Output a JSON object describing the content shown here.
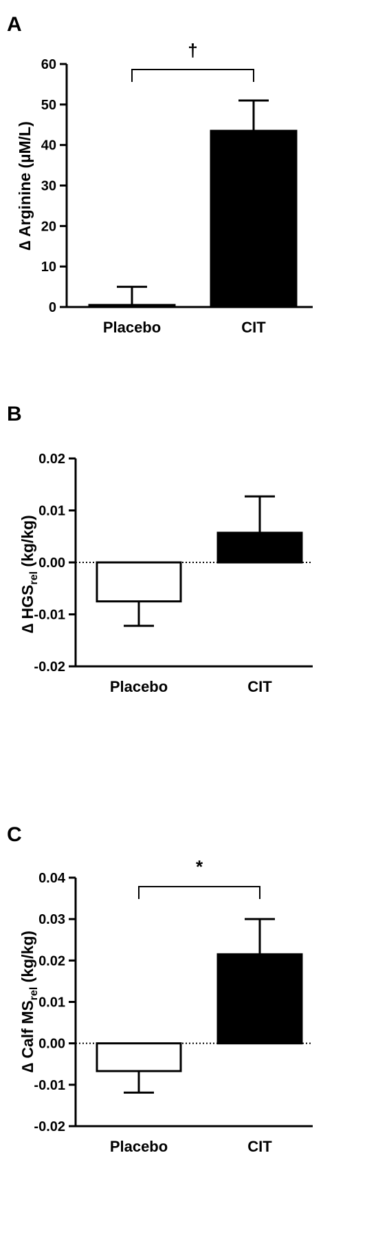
{
  "chart_data": [
    {
      "panel_label": "A",
      "type": "bar",
      "categories": [
        "Placebo",
        "CIT"
      ],
      "values": [
        0.5,
        43.5
      ],
      "errors": [
        4.5,
        7.5
      ],
      "fill_colors": [
        "#ffffff",
        "#000000"
      ],
      "ylim": [
        0,
        60
      ],
      "yticks": [
        0,
        10,
        20,
        30,
        40,
        50,
        60
      ],
      "yticklabels": [
        "0",
        "10",
        "20",
        "30",
        "40",
        "50",
        "60"
      ],
      "ylabel": "∆ Arginine (µM/L)",
      "significance": "†",
      "dotted_zero_line": false,
      "grid": false,
      "legend": "none"
    },
    {
      "panel_label": "B",
      "type": "bar",
      "categories": [
        "Placebo",
        "CIT"
      ],
      "values": [
        -0.0075,
        0.0057
      ],
      "errors": [
        0.0047,
        0.007
      ],
      "fill_colors": [
        "#ffffff",
        "#000000"
      ],
      "ylim": [
        -0.02,
        0.02
      ],
      "yticks": [
        -0.02,
        -0.01,
        0,
        0.01,
        0.02
      ],
      "yticklabels": [
        "-0.02",
        "-0.01",
        "0.00",
        "0.01",
        "0.02"
      ],
      "ylabel": "∆ HGS",
      "ylabel_sub": "rel",
      "ylabel_tail": " (kg/kg)",
      "significance": "",
      "dotted_zero_line": true,
      "grid": false,
      "legend": "none"
    },
    {
      "panel_label": "C",
      "type": "bar",
      "categories": [
        "Placebo",
        "CIT"
      ],
      "values": [
        -0.0067,
        0.0215
      ],
      "errors": [
        0.0052,
        0.0085
      ],
      "fill_colors": [
        "#ffffff",
        "#000000"
      ],
      "ylim": [
        -0.02,
        0.04
      ],
      "yticks": [
        -0.02,
        -0.01,
        0,
        0.01,
        0.02,
        0.03,
        0.04
      ],
      "yticklabels": [
        "-0.02",
        "-0.01",
        "0.00",
        "0.01",
        "0.02",
        "0.03",
        "0.04"
      ],
      "ylabel": "∆ Calf MS",
      "ylabel_sub": "rel",
      "ylabel_tail": " (kg/kg)",
      "significance": "*",
      "dotted_zero_line": true,
      "grid": false,
      "legend": "none"
    }
  ]
}
